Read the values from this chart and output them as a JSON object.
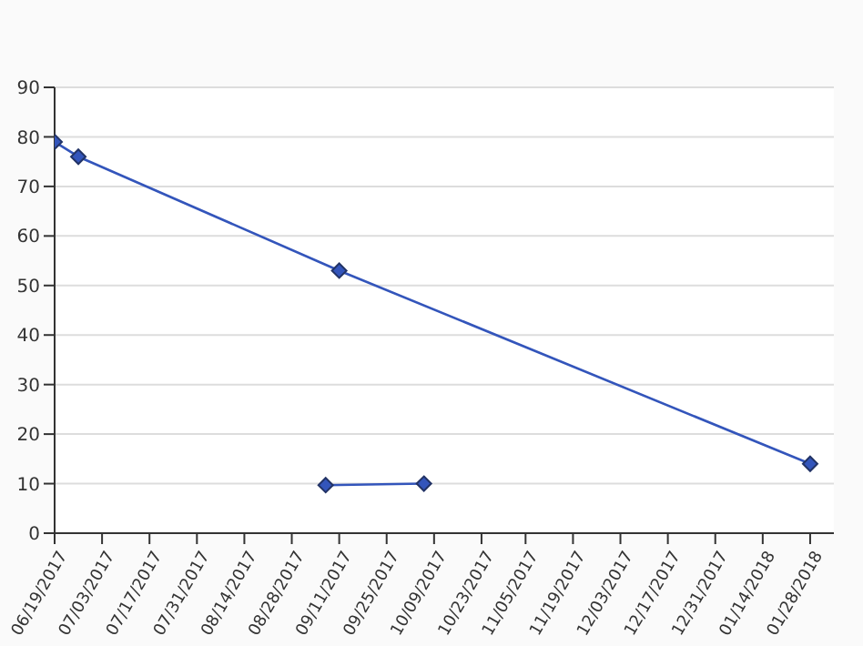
{
  "chart_data": {
    "type": "line",
    "x": [
      "2017-06-19",
      "2017-06-26",
      "2017-09-11",
      "2018-01-28"
    ],
    "series": [
      {
        "color": "#3355bb",
        "values": [
          79,
          76,
          53,
          14
        ]
      },
      {
        "color": "#3355bb",
        "x": [
          "2017-09-07",
          "2017-10-06"
        ],
        "values": [
          9.7,
          10
        ]
      }
    ],
    "xlim": [
      "2017-06-19",
      "2018-02-04"
    ],
    "xticks": [
      {
        "value": "2017-06-19",
        "label": "06/19/2017"
      },
      {
        "value": "2017-07-03",
        "label": "07/03/2017"
      },
      {
        "value": "2017-07-17",
        "label": "07/17/2017"
      },
      {
        "value": "2017-07-31",
        "label": "07/31/2017"
      },
      {
        "value": "2017-08-14",
        "label": "08/14/2017"
      },
      {
        "value": "2017-08-28",
        "label": "08/28/2017"
      },
      {
        "value": "2017-09-11",
        "label": "09/11/2017"
      },
      {
        "value": "2017-09-25",
        "label": "09/25/2017"
      },
      {
        "value": "2017-10-09",
        "label": "10/09/2017"
      },
      {
        "value": "2017-10-23",
        "label": "10/23/2017"
      },
      {
        "value": "2017-11-05",
        "label": "11/05/2017"
      },
      {
        "value": "2017-11-19",
        "label": "11/19/2017"
      },
      {
        "value": "2017-12-03",
        "label": "12/03/2017"
      },
      {
        "value": "2017-12-17",
        "label": "12/17/2017"
      },
      {
        "value": "2017-12-31",
        "label": "12/31/2017"
      },
      {
        "value": "2018-01-14",
        "label": "01/14/2018"
      },
      {
        "value": "2018-01-28",
        "label": "01/28/2018"
      }
    ],
    "ylim": [
      0,
      90
    ],
    "yticks": [
      0,
      10,
      20,
      30,
      40,
      50,
      60,
      70,
      80,
      90
    ],
    "grid": "y",
    "marker": "diamond",
    "line_style": "solid"
  }
}
